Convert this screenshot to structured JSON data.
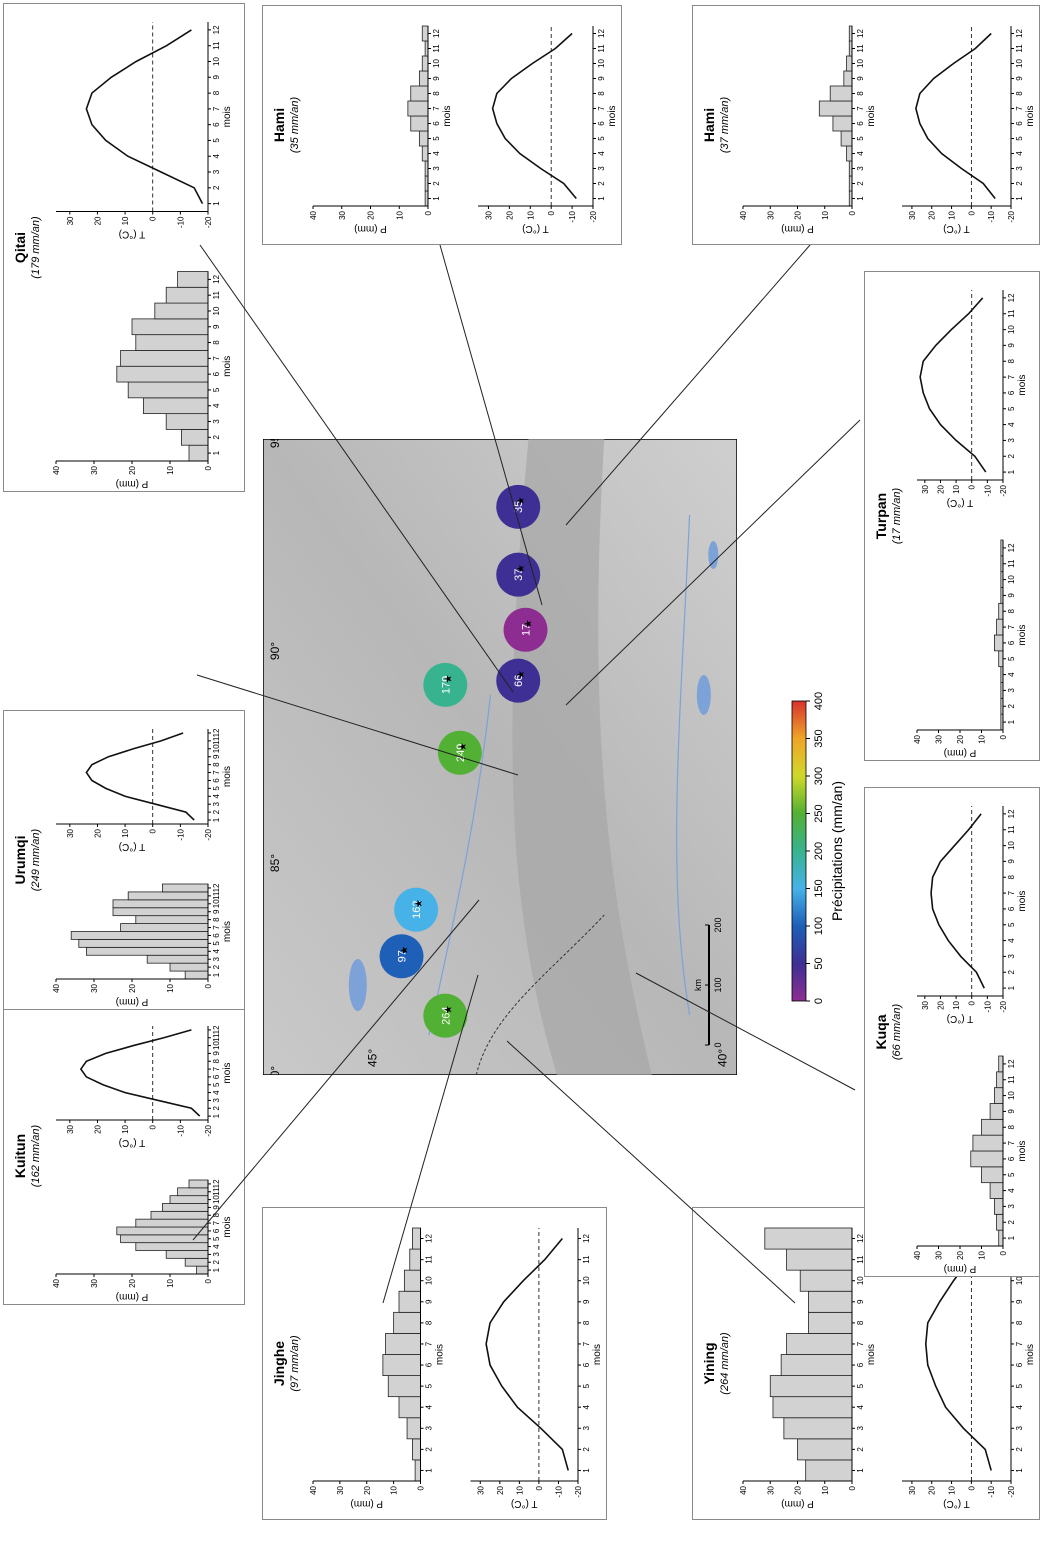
{
  "figure": {
    "lon_ticks": [
      "80°",
      "85°",
      "90°",
      "95°"
    ],
    "lat_ticks": [
      "45°",
      "40°"
    ]
  },
  "colorbar": {
    "title": "Précipitations (mm/an)",
    "ticks": [
      "0",
      "50",
      "100",
      "150",
      "200",
      "250",
      "300",
      "350",
      "400"
    ],
    "colors": [
      "#8e2d91",
      "#3d2f93",
      "#1e5fb8",
      "#46b2e8",
      "#38b38f",
      "#52b034",
      "#cfd92a",
      "#f0a428",
      "#d6322d"
    ]
  },
  "scale_bar": {
    "unit": "km",
    "ticks": [
      "0",
      "100",
      "200"
    ]
  },
  "chart_data": [
    {
      "type": "bar",
      "panel": "Kuitun",
      "title": "Kuitun",
      "subtitle": "(162 mm/an)",
      "xlabel": "mois",
      "ylabel": "P (mm)",
      "categories": [
        "1",
        "2",
        "3",
        "4",
        "5",
        "6",
        "7",
        "8",
        "9",
        "10",
        "11",
        "12"
      ],
      "values": [
        3,
        6,
        11,
        19,
        23,
        24,
        19,
        15,
        12,
        10,
        8,
        5
      ],
      "ylim": [
        0,
        40
      ],
      "yticks": [
        "0",
        "10",
        "20",
        "30",
        "40"
      ]
    },
    {
      "type": "line",
      "panel": "Kuitun",
      "xlabel": "mois",
      "ylabel": "T (°C)",
      "x": [
        1,
        2,
        3,
        4,
        5,
        6,
        7,
        8,
        9,
        10,
        11,
        12
      ],
      "y": [
        -17,
        -14,
        -2,
        10,
        18,
        24,
        26,
        24,
        17,
        7,
        -4,
        -14
      ],
      "ylim": [
        -20,
        35
      ],
      "yticks": [
        "-20",
        "-10",
        "0",
        "10",
        "20",
        "30"
      ],
      "reference_line": 0
    },
    {
      "type": "bar",
      "panel": "Jinghe",
      "title": "Jinghe",
      "subtitle": "(97 mm/an)",
      "xlabel": "mois",
      "ylabel": "P (mm)",
      "categories": [
        "1",
        "2",
        "3",
        "4",
        "5",
        "6",
        "7",
        "8",
        "9",
        "10",
        "11",
        "12"
      ],
      "values": [
        2,
        3,
        5,
        8,
        12,
        14,
        13,
        10,
        8,
        6,
        4,
        3
      ],
      "ylim": [
        0,
        40
      ],
      "yticks": [
        "0",
        "10",
        "20",
        "30",
        "40"
      ]
    },
    {
      "type": "line",
      "panel": "Jinghe",
      "xlabel": "mois",
      "ylabel": "T (°C)",
      "x": [
        1,
        2,
        3,
        4,
        5,
        6,
        7,
        8,
        9,
        10,
        11,
        12
      ],
      "y": [
        -15,
        -12,
        -1,
        11,
        19,
        25,
        27,
        25,
        18,
        8,
        -3,
        -12
      ],
      "ylim": [
        -20,
        35
      ],
      "yticks": [
        "-20",
        "-10",
        "0",
        "10",
        "20",
        "30"
      ],
      "reference_line": 0
    },
    {
      "type": "bar",
      "panel": "Yining",
      "title": "Yining",
      "subtitle": "(264 mm/an)",
      "xlabel": "mois",
      "ylabel": "P (mm)",
      "categories": [
        "1",
        "2",
        "3",
        "4",
        "5",
        "6",
        "7",
        "8",
        "9",
        "10",
        "11",
        "12"
      ],
      "values": [
        17,
        20,
        25,
        29,
        30,
        26,
        24,
        16,
        16,
        19,
        24,
        32
      ],
      "ylim": [
        0,
        40
      ],
      "yticks": [
        "0",
        "10",
        "20",
        "30",
        "40"
      ]
    },
    {
      "type": "line",
      "panel": "Yining",
      "xlabel": "mois",
      "ylabel": "T (°C)",
      "x": [
        1,
        2,
        3,
        4,
        5,
        6,
        7,
        8,
        9,
        10,
        11,
        12
      ],
      "y": [
        -10,
        -7,
        4,
        13,
        18,
        22,
        23,
        22,
        16,
        9,
        1,
        -7
      ],
      "ylim": [
        -20,
        35
      ],
      "yticks": [
        "-20",
        "-10",
        "0",
        "10",
        "20",
        "30"
      ],
      "reference_line": 0
    },
    {
      "type": "bar",
      "panel": "Urumqi",
      "title": "Urumqi",
      "subtitle": "(249 mm/an)",
      "xlabel": "mois",
      "ylabel": "P (mm)",
      "categories": [
        "1",
        "2",
        "3",
        "4",
        "5",
        "6",
        "7",
        "8",
        "9",
        "10",
        "11",
        "12"
      ],
      "values": [
        6,
        10,
        16,
        32,
        34,
        36,
        23,
        19,
        25,
        25,
        21,
        12
      ],
      "ylim": [
        0,
        40
      ],
      "yticks": [
        "0",
        "10",
        "20",
        "30",
        "40"
      ]
    },
    {
      "type": "line",
      "panel": "Urumqi",
      "xlabel": "mois",
      "ylabel": "T (°C)",
      "x": [
        1,
        2,
        3,
        4,
        5,
        6,
        7,
        8,
        9,
        10,
        11,
        12
      ],
      "y": [
        -15,
        -12,
        -1,
        10,
        17,
        22,
        24,
        22,
        16,
        7,
        -3,
        -11
      ],
      "ylim": [
        -20,
        35
      ],
      "yticks": [
        "-20",
        "-10",
        "0",
        "10",
        "20",
        "30"
      ],
      "reference_line": 0
    },
    {
      "type": "bar",
      "panel": "Kuqa",
      "title": "Kuqa",
      "subtitle": "(66 mm/an)",
      "xlabel": "mois",
      "ylabel": "P (mm)",
      "categories": [
        "1",
        "2",
        "3",
        "4",
        "5",
        "6",
        "7",
        "8",
        "9",
        "10",
        "11",
        "12"
      ],
      "values": [
        2,
        3,
        4,
        6,
        10,
        15,
        14,
        10,
        6,
        4,
        3,
        2
      ],
      "ylim": [
        0,
        40
      ],
      "yticks": [
        "0",
        "10",
        "20",
        "30",
        "40"
      ]
    },
    {
      "type": "line",
      "panel": "Kuqa",
      "xlabel": "mois",
      "ylabel": "T (°C)",
      "x": [
        1,
        2,
        3,
        4,
        5,
        6,
        7,
        8,
        9,
        10,
        11,
        12
      ],
      "y": [
        -8,
        -3,
        7,
        15,
        21,
        25,
        26,
        25,
        20,
        11,
        2,
        -6
      ],
      "ylim": [
        -20,
        35
      ],
      "yticks": [
        "-20",
        "-10",
        "0",
        "10",
        "20",
        "30"
      ],
      "reference_line": 0
    },
    {
      "type": "bar",
      "panel": "Qitai",
      "title": "Qitai",
      "subtitle": "(179 mm/an)",
      "xlabel": "mois",
      "ylabel": "P (mm)",
      "categories": [
        "1",
        "2",
        "3",
        "4",
        "5",
        "6",
        "7",
        "8",
        "9",
        "10",
        "11",
        "12"
      ],
      "values": [
        5,
        7,
        11,
        17,
        21,
        24,
        23,
        19,
        20,
        14,
        11,
        8
      ],
      "ylim": [
        0,
        40
      ],
      "yticks": [
        "0",
        "10",
        "20",
        "30",
        "40"
      ]
    },
    {
      "type": "line",
      "panel": "Qitai",
      "xlabel": "mois",
      "ylabel": "T (°C)",
      "x": [
        1,
        2,
        3,
        4,
        5,
        6,
        7,
        8,
        9,
        10,
        11,
        12
      ],
      "y": [
        -18,
        -15,
        -3,
        9,
        17,
        22,
        24,
        22,
        15,
        6,
        -5,
        -14
      ],
      "ylim": [
        -20,
        35
      ],
      "yticks": [
        "-20",
        "-10",
        "0",
        "10",
        "20",
        "30"
      ],
      "reference_line": 0
    },
    {
      "type": "bar",
      "panel": "Turpan",
      "title": "Turpan",
      "subtitle": "(17 mm/an)",
      "xlabel": "mois",
      "ylabel": "P (mm)",
      "categories": [
        "1",
        "2",
        "3",
        "4",
        "5",
        "6",
        "7",
        "8",
        "9",
        "10",
        "11",
        "12"
      ],
      "values": [
        1,
        1,
        1,
        1,
        2,
        4,
        3,
        2,
        1,
        1,
        1,
        1
      ],
      "ylim": [
        0,
        40
      ],
      "yticks": [
        "0",
        "10",
        "20",
        "30",
        "40"
      ]
    },
    {
      "type": "line",
      "panel": "Turpan",
      "xlabel": "mois",
      "ylabel": "T (°C)",
      "x": [
        1,
        2,
        3,
        4,
        5,
        6,
        7,
        8,
        9,
        10,
        11,
        12
      ],
      "y": [
        -9,
        -2,
        10,
        20,
        27,
        31,
        33,
        31,
        23,
        13,
        2,
        -7
      ],
      "ylim": [
        -20,
        35
      ],
      "yticks": [
        "-20",
        "-10",
        "0",
        "10",
        "20",
        "30"
      ],
      "reference_line": 0
    },
    {
      "type": "bar",
      "panel": "Hami-35",
      "title": "Hami",
      "subtitle": "(35 mm/an)",
      "xlabel": "mois",
      "ylabel": "P (mm)",
      "categories": [
        "1",
        "2",
        "3",
        "4",
        "5",
        "6",
        "7",
        "8",
        "9",
        "10",
        "11",
        "12"
      ],
      "values": [
        1,
        1,
        1,
        2,
        3,
        6,
        7,
        6,
        3,
        2,
        1,
        2
      ],
      "ylim": [
        0,
        40
      ],
      "yticks": [
        "0",
        "10",
        "20",
        "30",
        "40"
      ]
    },
    {
      "type": "line",
      "panel": "Hami-35",
      "xlabel": "mois",
      "ylabel": "T (°C)",
      "x": [
        1,
        2,
        3,
        4,
        5,
        6,
        7,
        8,
        9,
        10,
        11,
        12
      ],
      "y": [
        -12,
        -6,
        5,
        15,
        22,
        26,
        28,
        26,
        19,
        9,
        -2,
        -10
      ],
      "ylim": [
        -20,
        35
      ],
      "yticks": [
        "-20",
        "-10",
        "0",
        "10",
        "20",
        "30"
      ],
      "reference_line": 0
    },
    {
      "type": "bar",
      "panel": "Hami-37",
      "title": "Hami",
      "subtitle": "(37 mm/an)",
      "xlabel": "mois",
      "ylabel": "P (mm)",
      "categories": [
        "1",
        "2",
        "3",
        "4",
        "5",
        "6",
        "7",
        "8",
        "9",
        "10",
        "11",
        "12"
      ],
      "values": [
        1,
        1,
        1,
        2,
        4,
        7,
        12,
        8,
        3,
        2,
        1,
        1
      ],
      "ylim": [
        0,
        40
      ],
      "yticks": [
        "0",
        "10",
        "20",
        "30",
        "40"
      ]
    },
    {
      "type": "line",
      "panel": "Hami-37",
      "xlabel": "mois",
      "ylabel": "T (°C)",
      "x": [
        1,
        2,
        3,
        4,
        5,
        6,
        7,
        8,
        9,
        10,
        11,
        12
      ],
      "y": [
        -12,
        -6,
        5,
        15,
        22,
        26,
        28,
        26,
        19,
        9,
        -2,
        -10
      ],
      "ylim": [
        -20,
        35
      ],
      "yticks": [
        "-20",
        "-10",
        "0",
        "10",
        "20",
        "30"
      ],
      "reference_line": 0
    },
    {
      "type": "scatter",
      "panel": "map",
      "xlabel": "",
      "ylabel": "",
      "xlim": [
        80,
        95
      ],
      "ylim": [
        40,
        46.5
      ],
      "x": [
        81.4,
        82.8,
        83.9,
        87.6,
        89.2,
        90.5,
        89.3,
        91.8,
        93.4
      ],
      "y": [
        44.0,
        44.6,
        44.4,
        43.8,
        44.0,
        42.9,
        43.0,
        43.0,
        43.0
      ],
      "labels": [
        "264",
        "97",
        "162",
        "249",
        "179",
        "17",
        "66",
        "37",
        "35"
      ],
      "values": [
        264,
        97,
        162,
        249,
        179,
        17,
        66,
        37,
        35
      ]
    }
  ]
}
